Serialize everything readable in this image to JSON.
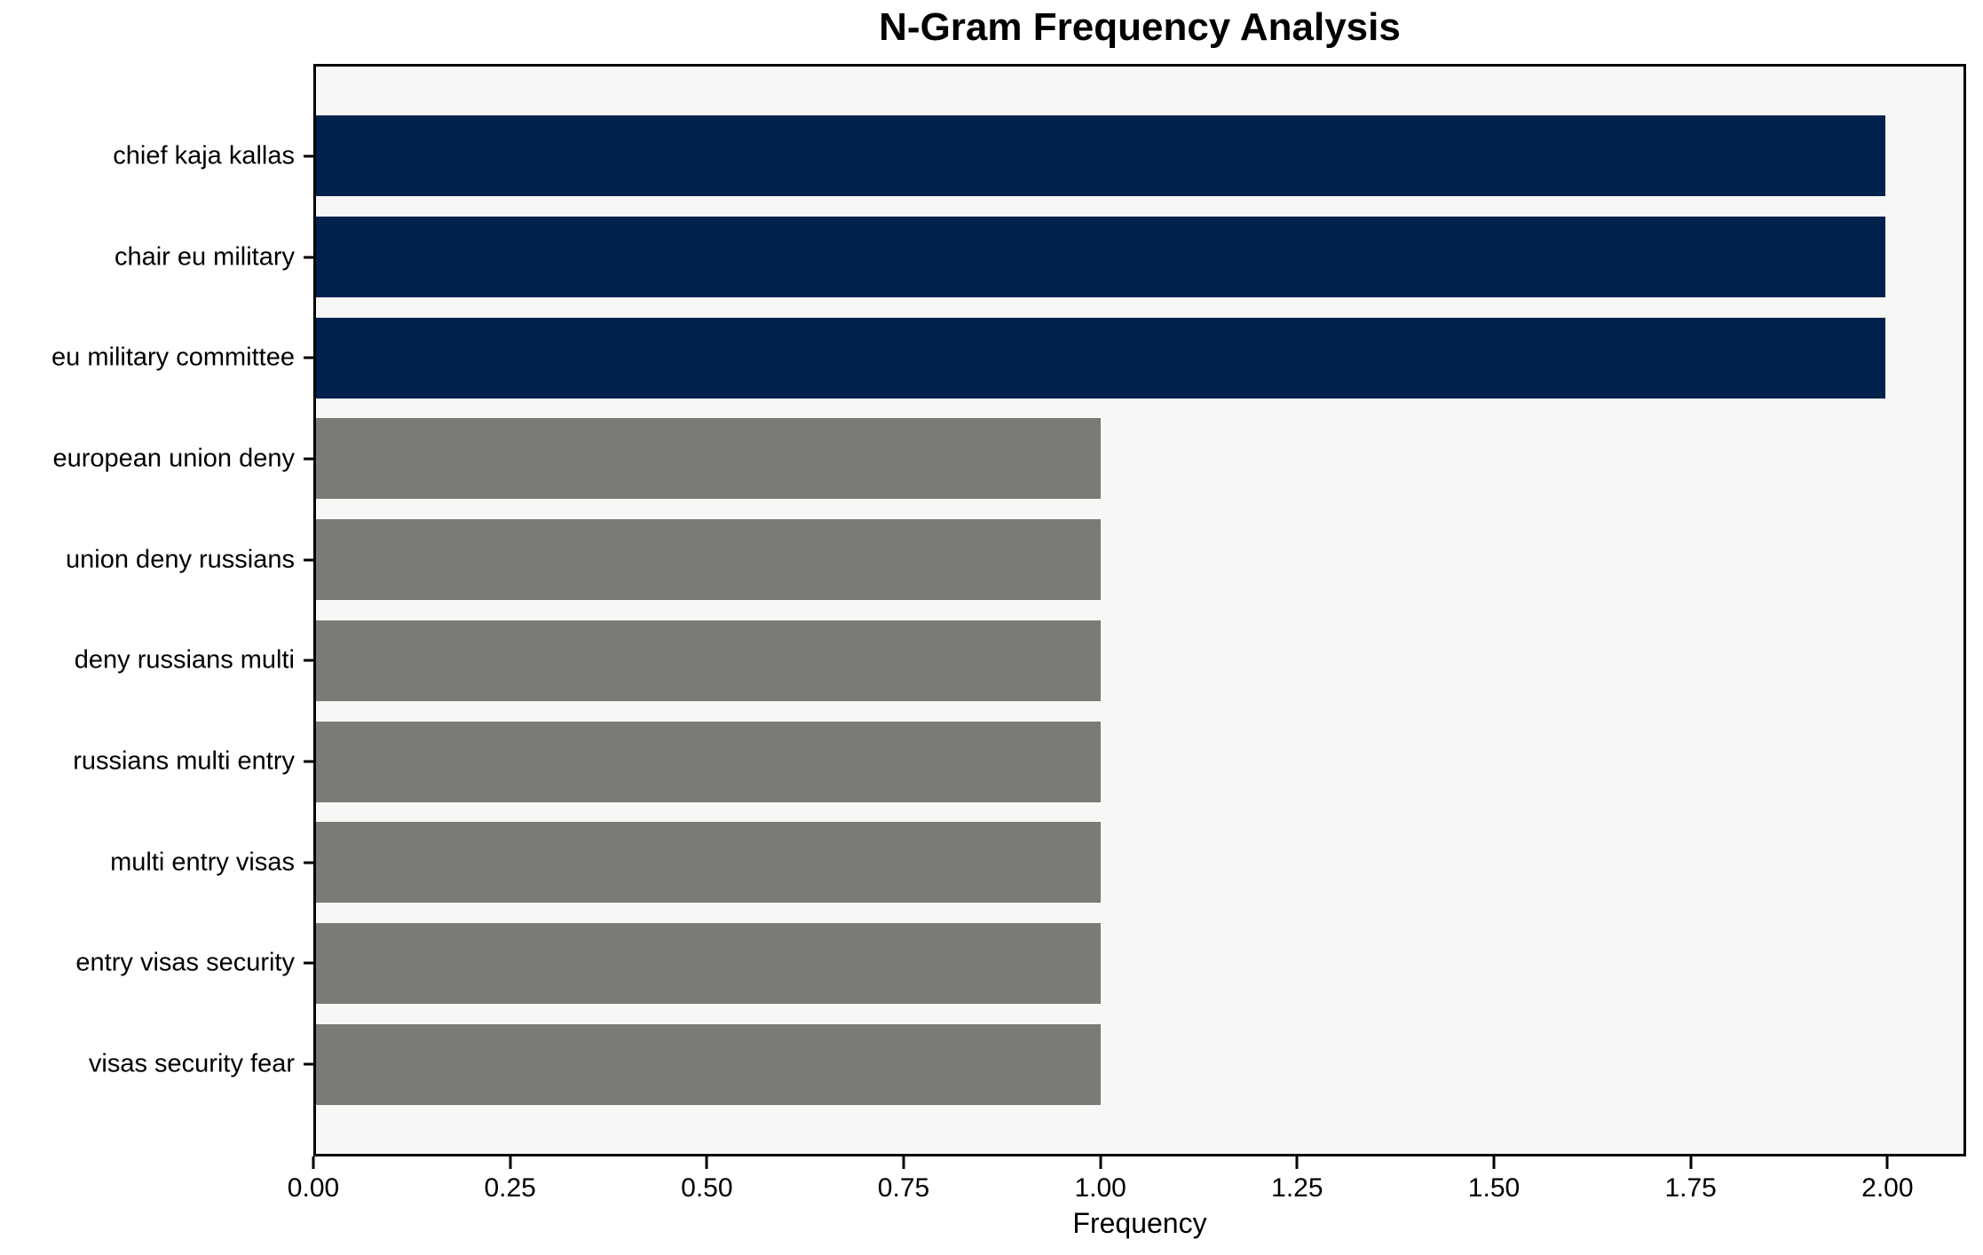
{
  "chart_data": {
    "type": "bar",
    "orientation": "horizontal",
    "title": "N-Gram Frequency Analysis",
    "xlabel": "Frequency",
    "ylabel": "",
    "categories": [
      "chief kaja kallas",
      "chair eu military",
      "eu military committee",
      "european union deny",
      "union deny russians",
      "deny russians multi",
      "russians multi entry",
      "multi entry visas",
      "entry visas security",
      "visas security fear"
    ],
    "values": [
      2,
      2,
      2,
      1,
      1,
      1,
      1,
      1,
      1,
      1
    ],
    "bar_colors": [
      "#01224d",
      "#01224d",
      "#01224d",
      "#7a7a77",
      "#7a7a77",
      "#7a7a77",
      "#7a7a77",
      "#7a7a77",
      "#7a7a77",
      "#7a7a77"
    ],
    "xlim": [
      0,
      2.1
    ],
    "xtick_values": [
      0.0,
      0.25,
      0.5,
      0.75,
      1.0,
      1.25,
      1.5,
      1.75,
      2.0
    ],
    "xtick_labels": [
      "0.00",
      "0.25",
      "0.50",
      "0.75",
      "1.00",
      "1.25",
      "1.50",
      "1.75",
      "2.00"
    ],
    "grid": "off",
    "legend": "none",
    "colors": {
      "highlight_bar": "#01224d",
      "default_bar": "#7a7a77",
      "plot_background": "#f7f7f6",
      "figure_background": "#ffffff",
      "spine": "#000000",
      "text": "#000000"
    }
  }
}
